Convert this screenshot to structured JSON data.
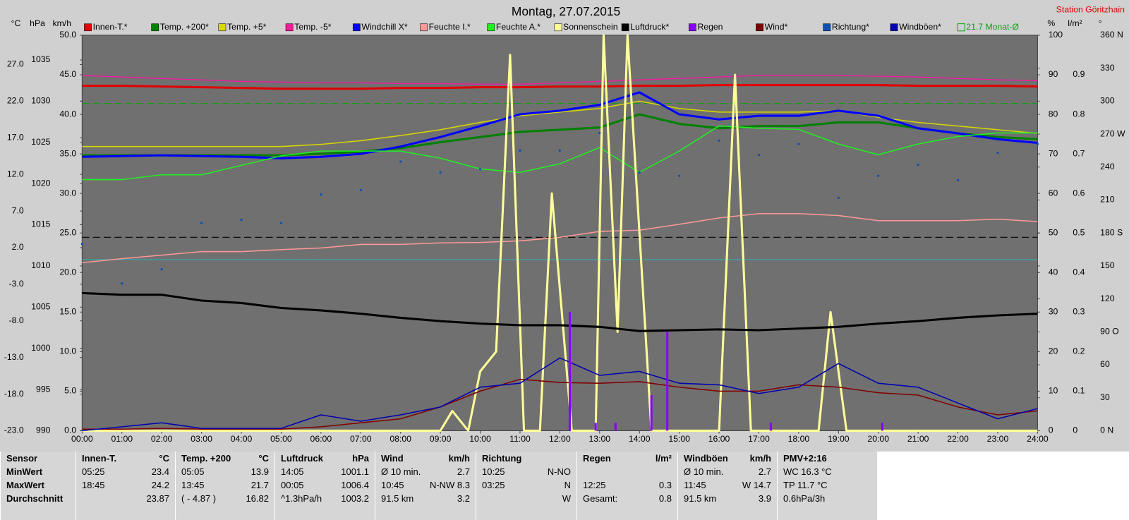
{
  "chart_data": {
    "type": "line",
    "title": "Montag, 27.07.2015",
    "subtitle": "Station Göritzhain",
    "xlim": [
      0,
      24
    ],
    "xticks": [
      {
        "value": 0,
        "label": "00:00"
      },
      {
        "value": 1,
        "label": "01:00"
      },
      {
        "value": 2,
        "label": "02:00"
      },
      {
        "value": 3,
        "label": "03:00"
      },
      {
        "value": 4,
        "label": "04:00"
      },
      {
        "value": 5,
        "label": "05:00"
      },
      {
        "value": 6,
        "label": "06:00"
      },
      {
        "value": 7,
        "label": "07:00"
      },
      {
        "value": 8,
        "label": "08:00"
      },
      {
        "value": 9,
        "label": "09:00"
      },
      {
        "value": 10,
        "label": "10:00"
      },
      {
        "value": 11,
        "label": "11:00"
      },
      {
        "value": 12,
        "label": "12:00"
      },
      {
        "value": 13,
        "label": "13:00"
      },
      {
        "value": 14,
        "label": "14:00"
      },
      {
        "value": 15,
        "label": "15:00"
      },
      {
        "value": 16,
        "label": "16:00"
      },
      {
        "value": 17,
        "label": "17:00"
      },
      {
        "value": 18,
        "label": "18:00"
      },
      {
        "value": 19,
        "label": "19:00"
      },
      {
        "value": 20,
        "label": "20:00"
      },
      {
        "value": 21,
        "label": "21:00"
      },
      {
        "value": 22,
        "label": "22:00"
      },
      {
        "value": 23,
        "label": "23:00"
      },
      {
        "value": 24,
        "label": "24:00"
      }
    ],
    "ylabel": "km/h",
    "ylim": [
      0,
      50
    ],
    "yticks": [
      {
        "value": 0,
        "label": "0.0"
      },
      {
        "value": 5,
        "label": "5.0"
      },
      {
        "value": 10,
        "label": "10.0"
      },
      {
        "value": 15,
        "label": "15.0"
      },
      {
        "value": 20,
        "label": "20.0"
      },
      {
        "value": 25,
        "label": "25.0"
      },
      {
        "value": 30,
        "label": "30.0"
      },
      {
        "value": 35,
        "label": "35.0"
      },
      {
        "value": 40,
        "label": "40.0"
      },
      {
        "value": 45,
        "label": "45.0"
      },
      {
        "value": 50,
        "label": "50.0"
      }
    ],
    "y2label": "°C",
    "y2lim": [
      -23,
      31
    ],
    "y2ticks": [
      {
        "value": -23,
        "label": "-23.0"
      },
      {
        "value": -18,
        "label": "-18.0"
      },
      {
        "value": -13,
        "label": "-13.0"
      },
      {
        "value": -8,
        "label": "-8.0"
      },
      {
        "value": -3,
        "label": "-3.0"
      },
      {
        "value": 2,
        "label": "2.0"
      },
      {
        "value": 7,
        "label": "7.0"
      },
      {
        "value": 12,
        "label": "12.0"
      },
      {
        "value": 17,
        "label": "17.0"
      },
      {
        "value": 22,
        "label": "22.0"
      },
      {
        "value": 27,
        "label": "27.0"
      }
    ],
    "y3label": "hPa",
    "y3lim": [
      990,
      1038
    ],
    "y3ticks": [
      990,
      995,
      1000,
      1005,
      1010,
      1015,
      1020,
      1025,
      1030,
      1035
    ],
    "y4label": "%",
    "y4lim": [
      0,
      100
    ],
    "y4ticks": [
      0,
      10,
      20,
      30,
      40,
      50,
      60,
      70,
      80,
      90,
      100
    ],
    "y5label": "l/m²",
    "y5lim": [
      0,
      1
    ],
    "y5ticks": [
      0,
      0.1,
      0.2,
      0.3,
      0.4,
      0.5,
      0.6,
      0.7,
      0.8,
      0.9
    ],
    "y6label": "°",
    "y6lim": [
      0,
      360
    ],
    "y6ticks": [
      {
        "value": 0,
        "label": "0 N"
      },
      30,
      60,
      {
        "value": 90,
        "label": "90 O"
      },
      120,
      150,
      {
        "value": 180,
        "label": "180 S"
      },
      210,
      240,
      {
        "value": 270,
        "label": "270 W"
      },
      300,
      330,
      {
        "value": 360,
        "label": "360 N"
      }
    ],
    "grid": false,
    "x": [
      0,
      1,
      2,
      3,
      4,
      5,
      6,
      7,
      8,
      9,
      10,
      11,
      12,
      13,
      14,
      15,
      16,
      17,
      18,
      19,
      20,
      21,
      22,
      23,
      24
    ],
    "series": [
      {
        "name": "Innen-T.*",
        "color": "#e00000",
        "axis": "y2",
        "style": "line",
        "thick": true,
        "values": [
          24.1,
          24.1,
          24.0,
          23.9,
          23.8,
          23.7,
          23.7,
          23.7,
          23.8,
          23.8,
          23.9,
          23.9,
          24.0,
          24.0,
          24.1,
          24.1,
          24.2,
          24.2,
          24.2,
          24.2,
          24.2,
          24.1,
          24.1,
          24.1,
          24.0
        ]
      },
      {
        "name": "Temp. +200*",
        "color": "#008000",
        "axis": "y2",
        "style": "line",
        "thick": true,
        "values": [
          14.6,
          14.6,
          14.6,
          14.6,
          14.6,
          14.6,
          14.8,
          15.1,
          15.6,
          16.4,
          17.1,
          17.8,
          18.1,
          18.4,
          20.2,
          18.9,
          18.3,
          18.6,
          18.6,
          19.1,
          19.1,
          18.3,
          17.6,
          17.1,
          16.8
        ]
      },
      {
        "name": "Temp. +5*",
        "color": "#d8d800",
        "axis": "y2",
        "style": "line",
        "thick": false,
        "values": [
          15.8,
          15.8,
          15.8,
          15.8,
          15.8,
          15.8,
          16.1,
          16.6,
          17.3,
          18.1,
          19.1,
          20.0,
          20.5,
          21.0,
          22.0,
          21.0,
          20.5,
          20.5,
          20.5,
          20.7,
          19.8,
          19.1,
          18.6,
          18.1,
          17.6
        ]
      },
      {
        "name": "Temp. -5*",
        "color": "#e8209c",
        "axis": "y2",
        "style": "line",
        "thick": false,
        "values": [
          25.5,
          25.3,
          25.1,
          24.9,
          24.7,
          24.6,
          24.5,
          24.5,
          24.4,
          24.4,
          24.3,
          24.3,
          24.5,
          24.7,
          24.9,
          25.1,
          25.3,
          25.5,
          25.5,
          25.5,
          25.4,
          25.3,
          25.1,
          24.9,
          24.8
        ]
      },
      {
        "name": "Windchill X*",
        "color": "#0000ff",
        "axis": "y2",
        "style": "line",
        "thick": true,
        "values": [
          14.4,
          14.5,
          14.6,
          14.5,
          14.4,
          14.2,
          14.4,
          14.8,
          15.8,
          17.1,
          18.6,
          20.2,
          20.7,
          21.5,
          23.2,
          20.2,
          19.5,
          20.0,
          20.0,
          20.7,
          20.0,
          18.3,
          17.6,
          16.8,
          16.3
        ]
      },
      {
        "name": "Feuchte I.*",
        "color": "#ff9898",
        "axis": "y4",
        "style": "line",
        "thick": false,
        "values": [
          42.5,
          43.5,
          44.4,
          45.3,
          45.3,
          45.8,
          46.2,
          47.1,
          47.1,
          47.5,
          47.6,
          48.0,
          48.9,
          50.4,
          50.7,
          52.2,
          53.8,
          54.9,
          54.9,
          54.4,
          53.1,
          53.1,
          53.1,
          53.5,
          52.9
        ]
      },
      {
        "name": "Feuchte A.*",
        "color": "#20f020",
        "axis": "y4",
        "style": "line",
        "thick": false,
        "values": [
          63.5,
          63.5,
          64.7,
          64.7,
          67.1,
          69.5,
          70.7,
          70.7,
          70.7,
          68.9,
          66.2,
          65.3,
          67.5,
          71.6,
          65.3,
          70.7,
          77.1,
          76.5,
          76.2,
          72.5,
          69.8,
          72.5,
          74.4,
          75.3,
          75.3
        ]
      },
      {
        "name": "Sonnenschein",
        "color": "#ffff99",
        "axis": "y4",
        "style": "line",
        "thick": true,
        "x": [
          0,
          9,
          9.3,
          9.7,
          10,
          10.4,
          10.75,
          11.1,
          11.5,
          11.8,
          12.3,
          12.9,
          13.1,
          13.45,
          13.7,
          14.3,
          16,
          16.4,
          16.8,
          18.5,
          18.8,
          19.2,
          24
        ],
        "values": [
          0,
          0,
          5,
          0,
          15,
          20,
          95,
          0,
          0,
          60,
          0,
          0,
          100,
          25,
          100,
          0,
          0,
          90,
          0,
          0,
          30,
          0,
          0
        ]
      },
      {
        "name": "Luftdruck*",
        "color": "#000000",
        "axis": "y3",
        "style": "line",
        "thick": true,
        "values": [
          1006.7,
          1006.5,
          1006.5,
          1005.8,
          1005.5,
          1004.9,
          1004.6,
          1004.2,
          1003.7,
          1003.3,
          1003.0,
          1002.8,
          1002.8,
          1002.6,
          1002.1,
          1002.2,
          1002.3,
          1002.2,
          1002.4,
          1002.6,
          1003.0,
          1003.3,
          1003.7,
          1004.0,
          1004.2
        ]
      },
      {
        "name": "Regen",
        "color": "#8800ff",
        "axis": "y5",
        "style": "bar",
        "thick": false,
        "x": [
          12.25,
          12.9,
          13.4,
          14.3,
          14.7,
          17.3,
          20.1
        ],
        "values": [
          0.3,
          0.02,
          0.02,
          0.09,
          0.25,
          0.02,
          0.02
        ]
      },
      {
        "name": "Wind*",
        "color": "#800000",
        "axis": "y",
        "style": "line",
        "thick": false,
        "values": [
          0.2,
          0.2,
          0.3,
          0.2,
          0.2,
          0.2,
          0.5,
          1,
          1.5,
          3,
          5,
          6.5,
          6.1,
          6,
          6.2,
          5.5,
          5,
          5,
          5.8,
          5.5,
          4.8,
          4.5,
          3,
          2,
          2.5
        ]
      },
      {
        "name": "Richtung*",
        "color": "#1050b0",
        "axis": "y6",
        "style": "points",
        "thick": false,
        "values": [
          170,
          134,
          147,
          189,
          192,
          189,
          215,
          219,
          245,
          235,
          238,
          255,
          255,
          271,
          235,
          232,
          264,
          251,
          261,
          212,
          232,
          242,
          228,
          253,
          261
        ]
      },
      {
        "name": "Windböen*",
        "color": "#0000b0",
        "axis": "y",
        "style": "line",
        "thick": false,
        "values": [
          0,
          0.5,
          1,
          0.3,
          0.3,
          0.3,
          2,
          1.2,
          2,
          3,
          5.5,
          6,
          9.2,
          7,
          7.5,
          6,
          5.8,
          4.7,
          5.5,
          8.5,
          6,
          5.5,
          3.5,
          1.5,
          2.8
        ]
      }
    ],
    "reference": {
      "label": "21.7 Monat-Ø",
      "value": 21.7,
      "axis": "y2",
      "color": "#10a010"
    }
  },
  "table": {
    "panels": [
      {
        "title": "Sensor",
        "rows": [
          {
            "l": "MinWert"
          },
          {
            "l": "MaxWert"
          },
          {
            "l": "Durchschnitt"
          }
        ]
      },
      {
        "title": "Innen-T.",
        "unit": "°C",
        "rows": [
          {
            "l": "05:25",
            "r": "23.4"
          },
          {
            "l": "18:45",
            "r": "24.2"
          },
          {
            "r": "23.87"
          }
        ]
      },
      {
        "title": "Temp. +200",
        "unit": "°C",
        "rows": [
          {
            "l": "05:05",
            "r": "13.9"
          },
          {
            "l": "13:45",
            "r": "21.7"
          },
          {
            "l": "( - 4.87 )",
            "r": "16.82"
          }
        ]
      },
      {
        "title": "Luftdruck",
        "unit": "hPa",
        "rows": [
          {
            "l": "14:05",
            "r": "1001.1"
          },
          {
            "l": "00:05",
            "r": "1006.4"
          },
          {
            "l": "^1.3hPa/h",
            "r": "1003.2"
          }
        ]
      },
      {
        "title": "Wind",
        "unit": "km/h",
        "rows": [
          {
            "l": "Ø 10 min.",
            "r": "2.7"
          },
          {
            "l": "10:45",
            "r": "N-NW 8.3"
          },
          {
            "l": "91.5 km",
            "r": "3.2"
          }
        ]
      },
      {
        "title": "Richtung",
        "rows": [
          {
            "l": "10:25",
            "r": "N-NO"
          },
          {
            "l": "03:25",
            "r": "N"
          },
          {
            "r": "W"
          }
        ]
      },
      {
        "title": "Regen",
        "unit": "l/m²",
        "rows": [
          {},
          {
            "l": "12:25",
            "r": "0.3"
          },
          {
            "l": "Gesamt:",
            "r": "0.8"
          }
        ]
      },
      {
        "title": "Windböen",
        "unit": "km/h",
        "rows": [
          {
            "l": "Ø 10 min.",
            "r": "2.7"
          },
          {
            "l": "11:45",
            "r": "W 14.7"
          },
          {
            "l": "91.5 km",
            "r": "3.9"
          }
        ]
      },
      {
        "title": "PMV+2:16",
        "rows": [
          {
            "l": "WC 16.3 °C"
          },
          {
            "l": "TP 11.7 °C"
          },
          {
            "l": "0.6hPa/3h"
          }
        ]
      }
    ]
  }
}
